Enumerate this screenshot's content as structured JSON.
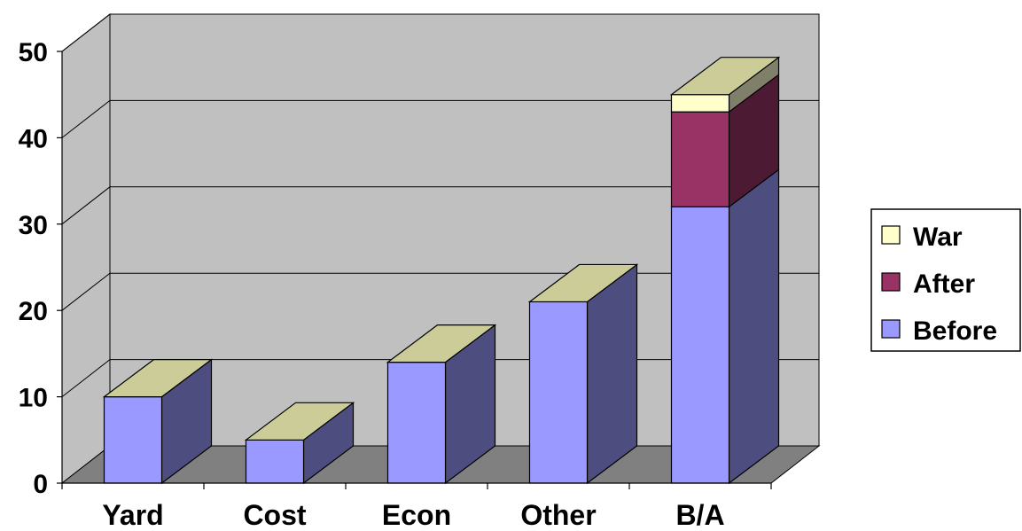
{
  "chart_data": {
    "type": "bar",
    "stacked": true,
    "three_d": true,
    "categories": [
      "Yard",
      "Cost",
      "Econ",
      "Other",
      "B/A"
    ],
    "series": [
      {
        "name": "Before",
        "values": [
          10,
          5,
          14,
          21,
          32
        ],
        "color": "#9999ff",
        "side_color": "#4d4d80"
      },
      {
        "name": "After",
        "values": [
          0,
          0,
          0,
          0,
          11
        ],
        "color": "#993366",
        "side_color": "#4d1a33"
      },
      {
        "name": "War",
        "values": [
          0,
          0,
          0,
          0,
          2
        ],
        "color": "#ffffcc",
        "side_color": "#80806a"
      }
    ],
    "top_cap_color": "#cccc99",
    "ylim": [
      0,
      50
    ],
    "yticks": [
      0,
      10,
      20,
      30,
      40,
      50
    ],
    "grid": true,
    "legend": {
      "position": "right",
      "order": [
        "War",
        "After",
        "Before"
      ]
    },
    "wall_color": "#c0c0c0",
    "floor_color": "#808080"
  }
}
